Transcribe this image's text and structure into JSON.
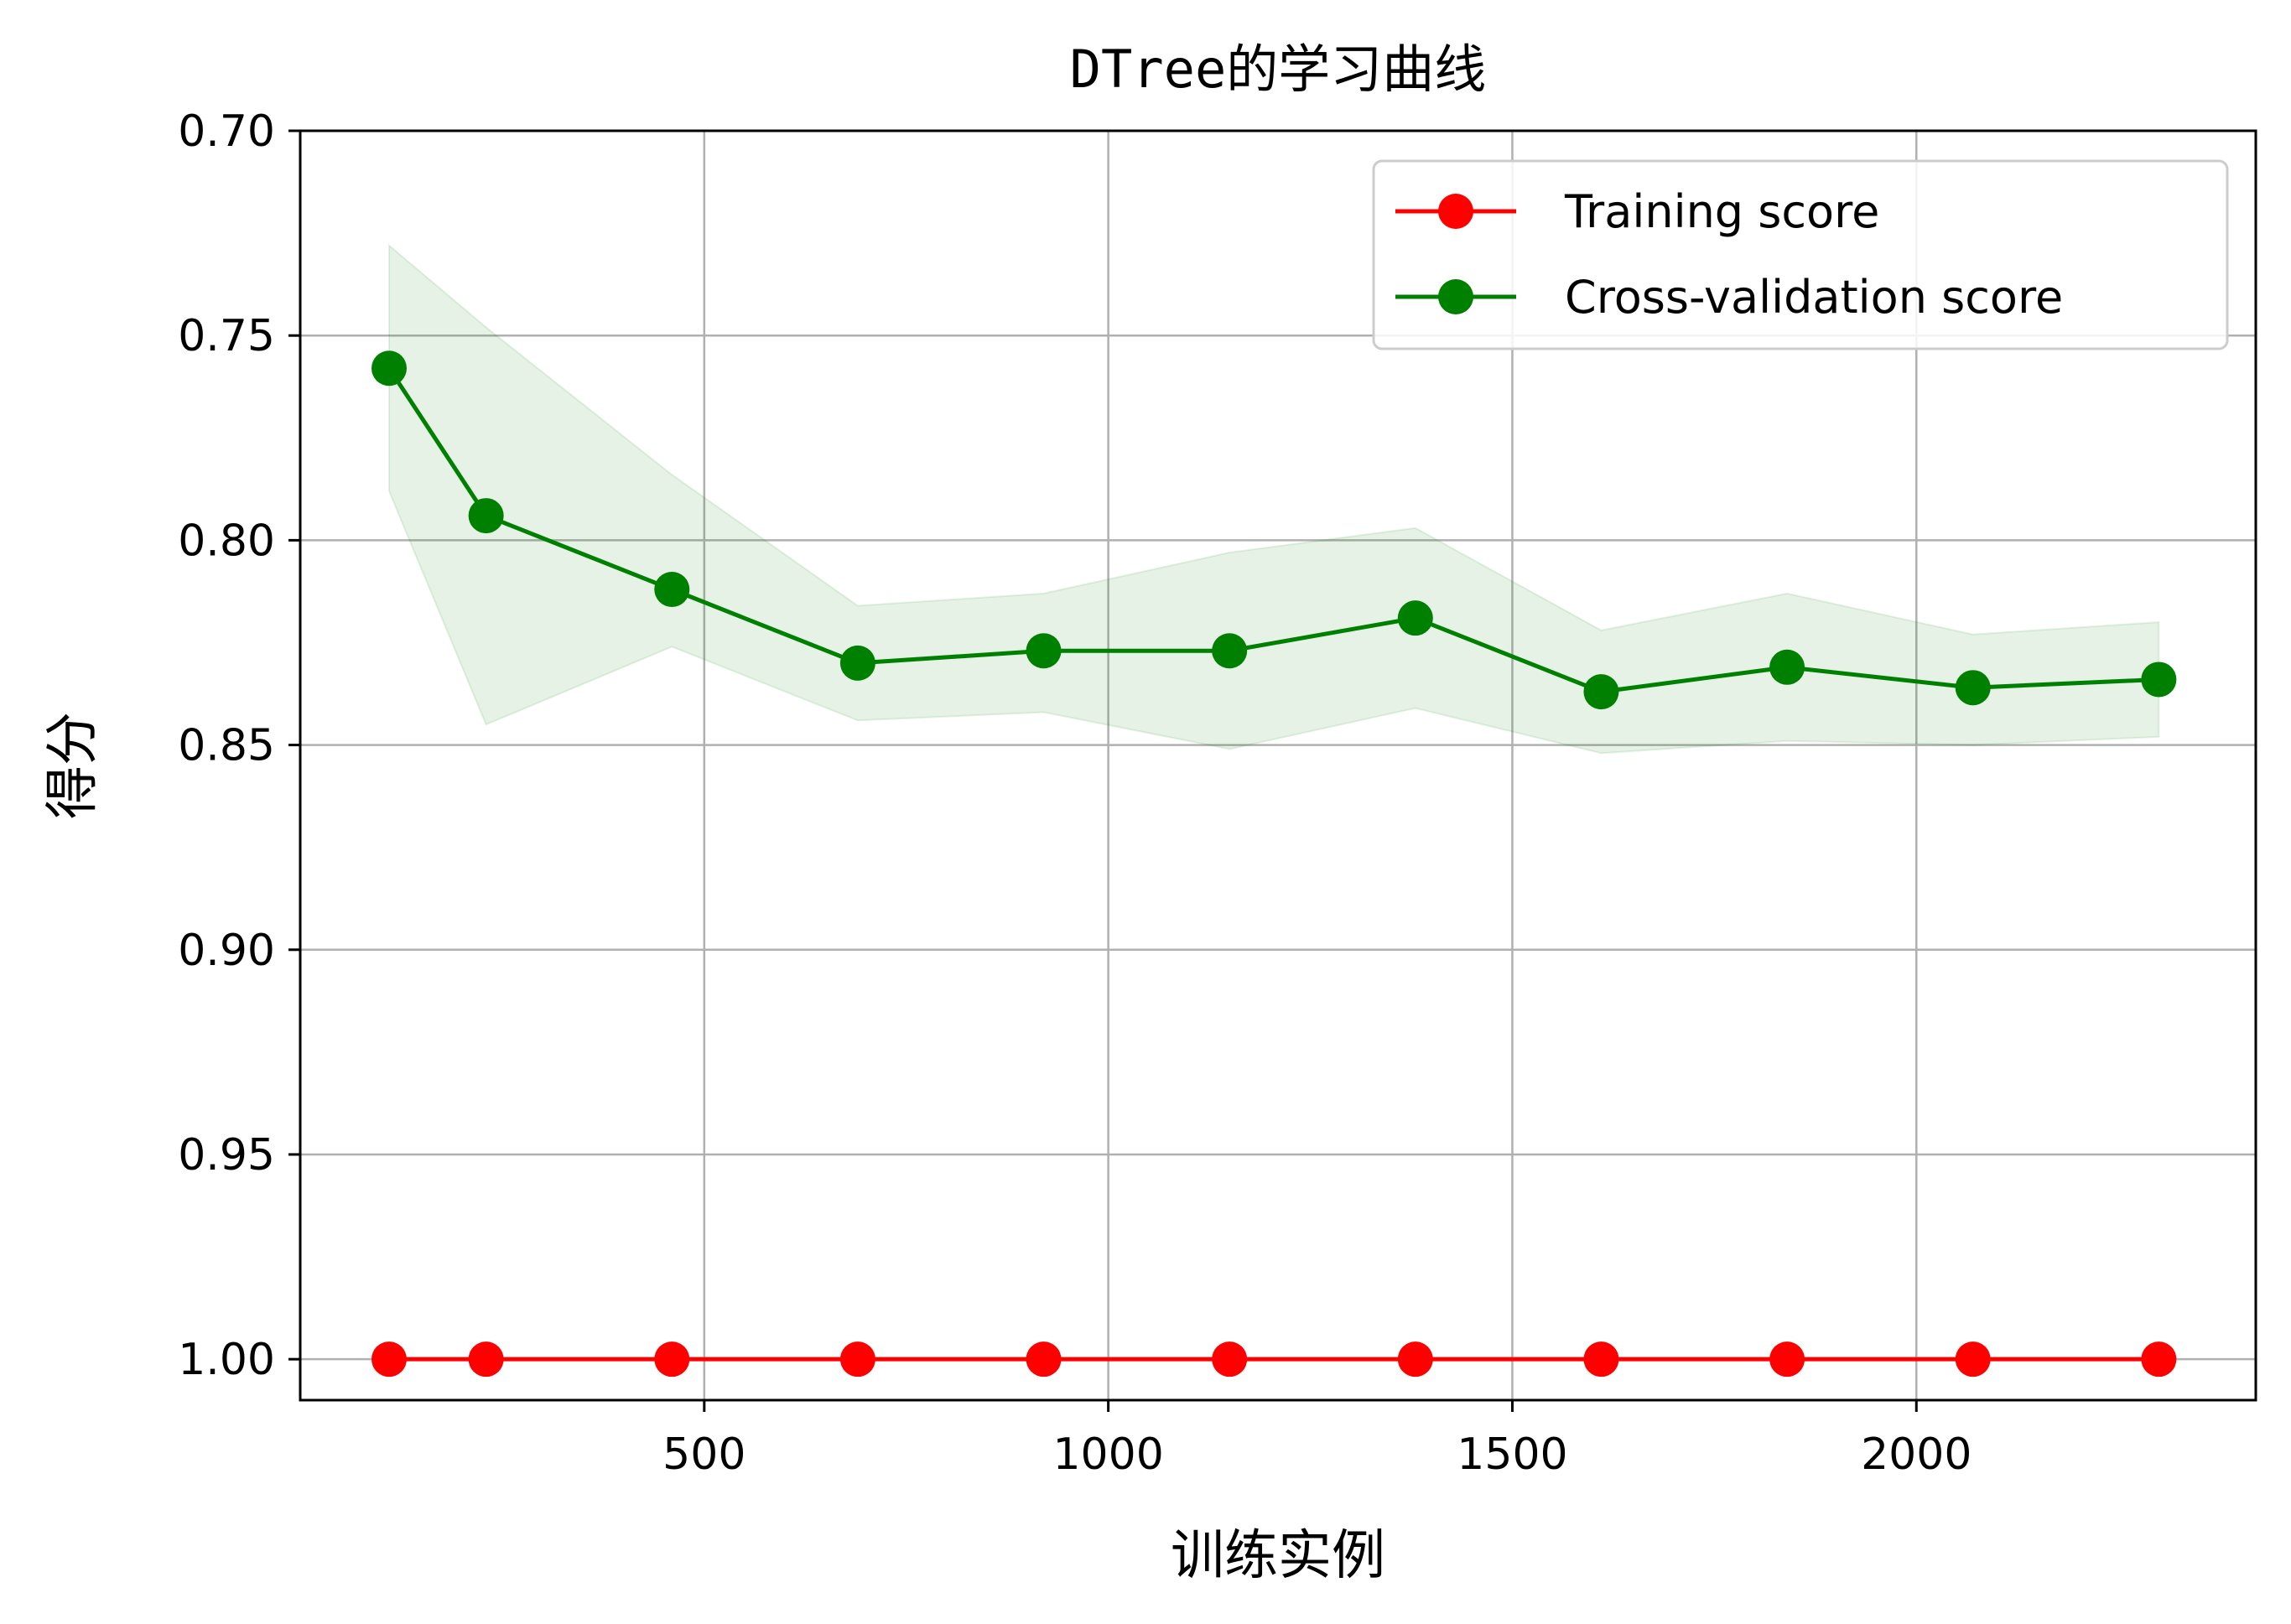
{
  "chart_data": {
    "type": "line",
    "title": "DTree的学习曲线",
    "xlabel": "训练实例",
    "ylabel": "得分",
    "xlim": [
      0,
      2420
    ],
    "ylim": [
      1.01,
      0.7
    ],
    "y_inverted": true,
    "xticks": [
      500,
      1000,
      1500,
      2000
    ],
    "xtick_labels": [
      "500",
      "1000",
      "1500",
      "2000"
    ],
    "yticks": [
      0.7,
      0.75,
      0.8,
      0.85,
      0.9,
      0.95,
      1.0
    ],
    "ytick_labels": [
      "0.70",
      "0.75",
      "0.80",
      "0.85",
      "0.90",
      "0.95",
      "1.00"
    ],
    "grid": true,
    "legend_position": "upper right",
    "x": [
      110,
      230,
      460,
      690,
      920,
      1150,
      1380,
      1610,
      1840,
      2070,
      2300
    ],
    "series": [
      {
        "name": "Training score",
        "color": "#ff0000",
        "marker": "circle",
        "values": [
          1.0,
          1.0,
          1.0,
          1.0,
          1.0,
          1.0,
          1.0,
          1.0,
          1.0,
          1.0,
          1.0
        ]
      },
      {
        "name": "Cross-validation score",
        "color": "#008000",
        "marker": "circle",
        "values": [
          0.758,
          0.794,
          0.812,
          0.83,
          0.827,
          0.827,
          0.819,
          0.837,
          0.831,
          0.836,
          0.834
        ],
        "band_color": "#008000",
        "band_opacity": 0.1,
        "band_lower": [
          0.728,
          0.748,
          0.784,
          0.816,
          0.813,
          0.803,
          0.797,
          0.822,
          0.813,
          0.823,
          0.82
        ],
        "band_upper": [
          0.788,
          0.845,
          0.826,
          0.844,
          0.842,
          0.851,
          0.841,
          0.852,
          0.849,
          0.85,
          0.848
        ]
      }
    ]
  }
}
